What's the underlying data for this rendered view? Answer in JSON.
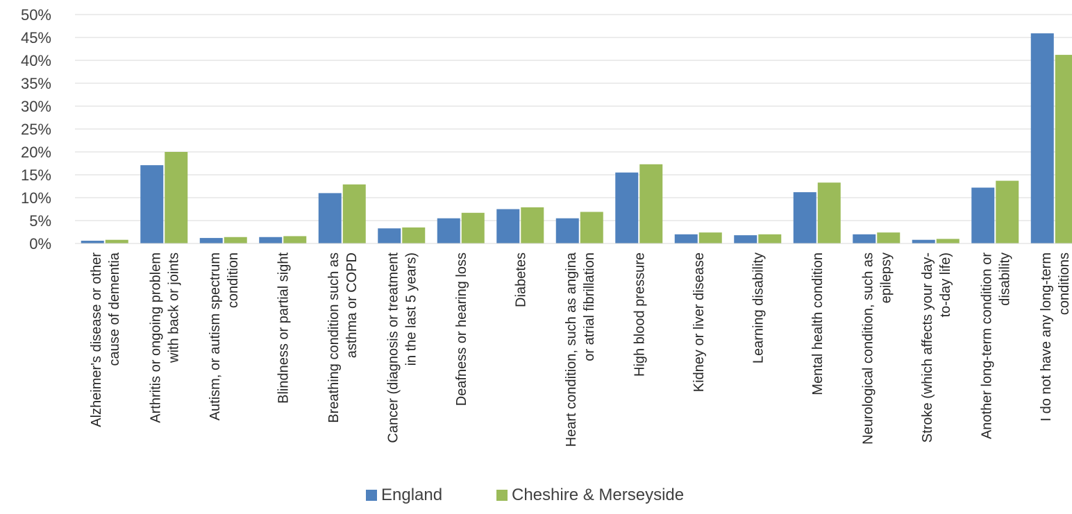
{
  "chart_data": {
    "type": "bar",
    "title": "",
    "xlabel": "",
    "ylabel": "",
    "ylim": [
      0,
      0.5
    ],
    "y_tick_values": [
      0,
      0.05,
      0.1,
      0.15,
      0.2,
      0.25,
      0.3,
      0.35,
      0.4,
      0.45,
      0.5
    ],
    "y_tick_labels": [
      "0%",
      "5%",
      "10%",
      "15%",
      "20%",
      "25%",
      "30%",
      "35%",
      "40%",
      "45%",
      "50%"
    ],
    "grid": true,
    "legend_position": "bottom",
    "categories": [
      [
        "Alzheimer's disease or other",
        "cause of dementia"
      ],
      [
        "Arthritis or ongoing problem",
        "with back or joints"
      ],
      [
        "Autism, or autism spectrum",
        "condition"
      ],
      [
        "Blindness or partial sight"
      ],
      [
        "Breathing condition such as",
        "asthma or COPD"
      ],
      [
        "Cancer (diagnosis or treatment",
        "in the last 5 years)"
      ],
      [
        "Deafness or hearing loss"
      ],
      [
        "Diabetes"
      ],
      [
        "Heart condition, such as angina",
        "or atrial fibrillation"
      ],
      [
        "High blood pressure"
      ],
      [
        "Kidney or liver disease"
      ],
      [
        "Learning disability"
      ],
      [
        "Mental health condition"
      ],
      [
        "Neurological condition, such as",
        "epilepsy"
      ],
      [
        "Stroke (which affects your day-",
        "to-day life)"
      ],
      [
        "Another long-term condition or",
        "disability"
      ],
      [
        "I do not have any long-term",
        "conditions"
      ]
    ],
    "series": [
      {
        "name": "England",
        "color": "#4f81bd",
        "values": [
          0.006,
          0.171,
          0.012,
          0.014,
          0.11,
          0.033,
          0.055,
          0.075,
          0.055,
          0.155,
          0.02,
          0.018,
          0.112,
          0.02,
          0.008,
          0.122,
          0.459
        ]
      },
      {
        "name": "Cheshire & Merseyside",
        "color": "#9bbb59",
        "values": [
          0.008,
          0.2,
          0.014,
          0.016,
          0.129,
          0.035,
          0.067,
          0.079,
          0.069,
          0.173,
          0.024,
          0.02,
          0.133,
          0.024,
          0.01,
          0.137,
          0.412
        ]
      }
    ]
  }
}
